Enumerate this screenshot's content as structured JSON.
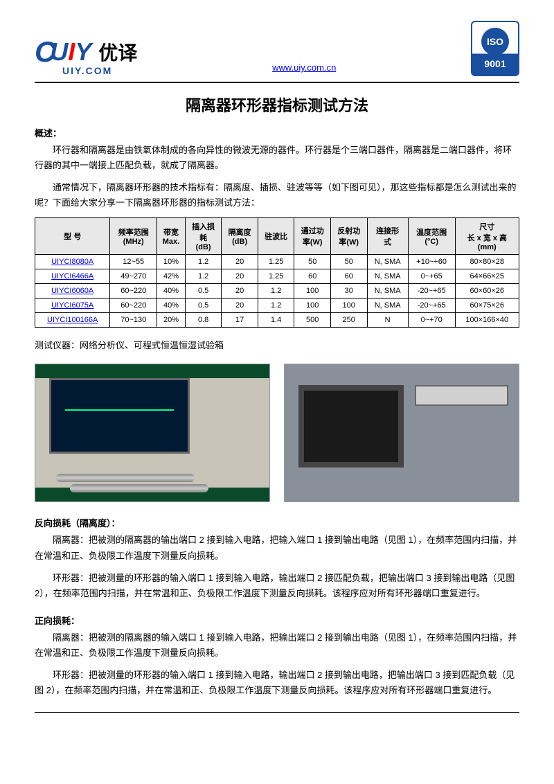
{
  "header": {
    "logo_cn": "优译",
    "logo_sub": "UIY.COM",
    "url": "www.uiy.com.cn",
    "iso_text": "ISO",
    "iso_num": "9001"
  },
  "title": "隔离器环形器指标测试方法",
  "overview_label": "概述：",
  "overview_p1": "环行器和隔离器是由铁氧体制成的各向异性的微波无源的器件。环行器是个三端口器件，隔离器是二端口器件，将环行器的其中一端接上匹配负载，就成了隔离器。",
  "overview_p2": "通常情况下，隔离器环形器的技术指标有：隔离度、插损、驻波等等（如下图可见），那这些指标都是怎么测试出来的呢？下面给大家分享一下隔离器环形器的指标测试方法：",
  "table": {
    "headers": [
      "型 号",
      "频率范围\n(MHz)",
      "带宽\nMax.",
      "插入损\n耗\n(dB)",
      "隔离度\n(dB)",
      "驻波比",
      "通过功\n率(W)",
      "反射功\n率(W)",
      "连接形\n式",
      "温度范围\n(°C)",
      "尺寸\n长 x 宽 x 高\n(mm)"
    ],
    "rows": [
      [
        "UIYCI8080A",
        "12~55",
        "10%",
        "1.2",
        "20",
        "1.25",
        "50",
        "50",
        "N, SMA",
        "+10~+60",
        "80×80×28"
      ],
      [
        "UIYCI6466A",
        "49~270",
        "42%",
        "1.2",
        "20",
        "1.25",
        "60",
        "60",
        "N, SMA",
        "0~+65",
        "64×66×25"
      ],
      [
        "UIYCI6060A",
        "60~220",
        "40%",
        "0.5",
        "20",
        "1.2",
        "100",
        "30",
        "N, SMA",
        "-20~+65",
        "60×60×26"
      ],
      [
        "UIYCI6075A",
        "60~220",
        "40%",
        "0.5",
        "20",
        "1.2",
        "100",
        "100",
        "N, SMA",
        "-20~+65",
        "60×75×26"
      ],
      [
        "UIYCI100166A",
        "70~130",
        "20%",
        "0.8",
        "17",
        "1.4",
        "500",
        "250",
        "N",
        "0~+70",
        "100×166×40"
      ]
    ]
  },
  "equipment_label": "测试仪器：网络分析仪、可程式恒温恒湿试验箱",
  "section1": {
    "title": "反向损耗（隔离度）：",
    "p1": "隔离器：把被测的隔离器的输出端口 2 接到输入电路，把输入端口 1 接到输出电路（见图 1），在频率范围内扫描，并在常温和正、负极限工作温度下测量反向损耗。",
    "p2": "环形器：把被测量的环形器的输入端口 1 接到输入电路，输出端口 2 接匹配负载，把输出端口 3 接到输出电路（见图 2），在频率范围内扫描，并在常温和正、负极限工作温度下测量反向损耗。该程序应对所有环形器端口重复进行。"
  },
  "section2": {
    "title": "正向损耗：",
    "p1": "隔离器：把被测的隔离器的输入端口 1 接到输入电路，把输出端口 2 接到输出电路（见图 1），在频率范围内扫描，并在常温和正、负极限工作温度下测量反向损耗。",
    "p2": "环形器：把被测量的环形器的输入端口 1 接到输入电路，输出端口 2 接到输出电路，把输出端口 3 接到匹配负载（见图 2），在频率范围内扫描，并在常温和正、负极限工作温度下测量反向损耗。该程序应对所有环形器端口重复进行。"
  }
}
